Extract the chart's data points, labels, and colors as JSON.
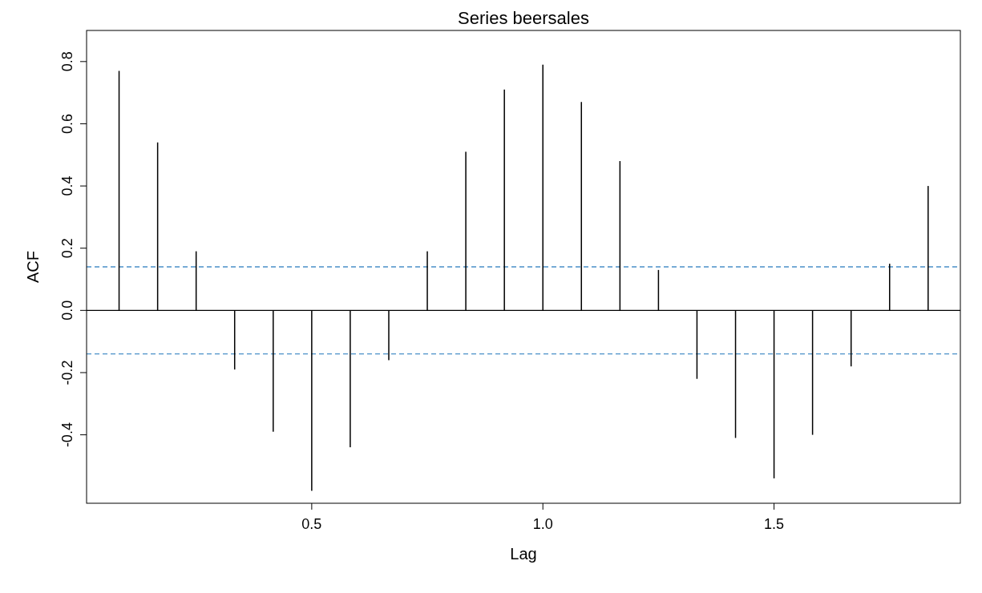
{
  "chart_data": {
    "type": "bar",
    "title": "Series beersales",
    "xlabel": "Lag",
    "ylabel": "ACF",
    "x": [
      0.0833,
      0.1667,
      0.25,
      0.3333,
      0.4167,
      0.5,
      0.5833,
      0.6667,
      0.75,
      0.8333,
      0.9167,
      1.0,
      1.0833,
      1.1667,
      1.25,
      1.3333,
      1.4167,
      1.5,
      1.5833,
      1.6667,
      1.75,
      1.8333
    ],
    "values": [
      0.77,
      0.54,
      0.19,
      -0.19,
      -0.39,
      -0.58,
      -0.44,
      -0.16,
      0.19,
      0.51,
      0.71,
      0.79,
      0.67,
      0.48,
      0.13,
      -0.22,
      -0.41,
      -0.54,
      -0.4,
      -0.18,
      0.15,
      0.4
    ],
    "color": "#000000",
    "xlim": [
      0.013,
      1.903
    ],
    "xticks": [
      0.5,
      {
        "value": 1.0,
        "label": "1.0"
      },
      1.5
    ],
    "ylim": [
      -0.62,
      0.9
    ],
    "yticks": [
      {
        "value": -0.4,
        "label": "-0.4"
      },
      {
        "value": -0.2,
        "label": "-0.2"
      },
      {
        "value": 0,
        "label": "0.0"
      },
      0.2,
      0.4,
      0.6,
      0.8
    ],
    "ref_lines": [
      {
        "axis": "y",
        "value": 0,
        "color": "#000000",
        "line_style": "solid"
      },
      {
        "axis": "y",
        "value": 0.14,
        "color": "#4a90c8",
        "line_style": "dashed"
      },
      {
        "axis": "y",
        "value": -0.14,
        "color": "#4a90c8",
        "line_style": "dashed"
      }
    ],
    "grid": false
  }
}
